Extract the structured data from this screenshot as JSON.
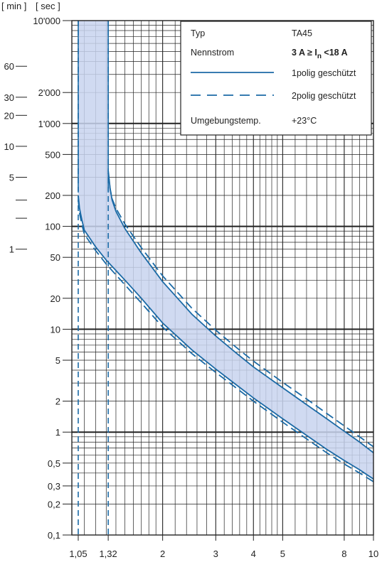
{
  "chart_data": {
    "type": "line",
    "title": "",
    "axis_labels": {
      "minutes": "[ min ]",
      "seconds": "[ sec ]"
    },
    "x_scale": "log",
    "y_scale": "log",
    "xlim": [
      1,
      10
    ],
    "ylim": [
      0.1,
      10000
    ],
    "x_ticks": [
      {
        "value": 1.05,
        "label": "1,05"
      },
      {
        "value": 1.32,
        "label": "1,32"
      },
      {
        "value": 2,
        "label": "2"
      },
      {
        "value": 3,
        "label": "3"
      },
      {
        "value": 4,
        "label": "4"
      },
      {
        "value": 5,
        "label": "5"
      },
      {
        "value": 8,
        "label": "8"
      },
      {
        "value": 10,
        "label": "10"
      }
    ],
    "y_ticks_sec": [
      {
        "value": 10000,
        "label": "10'000"
      },
      {
        "value": 2000,
        "label": "2'000"
      },
      {
        "value": 1000,
        "label": "1'000"
      },
      {
        "value": 500,
        "label": "500"
      },
      {
        "value": 200,
        "label": "200"
      },
      {
        "value": 100,
        "label": "100"
      },
      {
        "value": 50,
        "label": "50"
      },
      {
        "value": 20,
        "label": "20"
      },
      {
        "value": 10,
        "label": "10"
      },
      {
        "value": 5,
        "label": "5"
      },
      {
        "value": 2,
        "label": "2"
      },
      {
        "value": 1,
        "label": "1"
      },
      {
        "value": 0.5,
        "label": "0,5"
      },
      {
        "value": 0.3,
        "label": "0,3"
      },
      {
        "value": 0.2,
        "label": "0,2"
      },
      {
        "value": 0.1,
        "label": "0,1"
      }
    ],
    "y_ticks_min": [
      {
        "value": 3600,
        "label": "60"
      },
      {
        "value": 1800,
        "label": "30"
      },
      {
        "value": 1200,
        "label": "20"
      },
      {
        "value": 600,
        "label": "10"
      },
      {
        "value": 300,
        "label": "5"
      },
      {
        "value": 180,
        "label": ""
      },
      {
        "value": 120,
        "label": ""
      },
      {
        "value": 60,
        "label": "1"
      }
    ],
    "major_y_lines": [
      1,
      10,
      100,
      1000
    ],
    "vertical_markers": [
      1.05,
      1.32
    ],
    "band_fill": "#c8d4ee",
    "line_color": "#1b6aa6",
    "series": [
      {
        "legend_ref": "solid",
        "style": "solid",
        "points": [
          [
            1.05,
            200
          ],
          [
            1.06,
            150
          ],
          [
            1.08,
            115
          ],
          [
            1.1,
            92
          ],
          [
            1.2,
            63
          ],
          [
            1.3,
            47
          ],
          [
            1.5,
            30
          ],
          [
            1.7,
            20
          ],
          [
            2,
            11.5
          ],
          [
            2.5,
            6.3
          ],
          [
            3,
            4.1
          ],
          [
            3.5,
            2.9
          ],
          [
            4,
            2.15
          ],
          [
            5,
            1.35
          ],
          [
            6,
            0.93
          ],
          [
            7,
            0.68
          ],
          [
            8,
            0.53
          ],
          [
            9,
            0.43
          ],
          [
            10,
            0.35
          ]
        ]
      },
      {
        "legend_ref": "solid",
        "style": "solid",
        "points": [
          [
            1.32,
            350
          ],
          [
            1.34,
            230
          ],
          [
            1.36,
            180
          ],
          [
            1.4,
            140
          ],
          [
            1.5,
            95
          ],
          [
            1.7,
            55
          ],
          [
            2,
            29
          ],
          [
            2.5,
            14
          ],
          [
            3,
            8.6
          ],
          [
            3.5,
            5.9
          ],
          [
            4,
            4.3
          ],
          [
            5,
            2.7
          ],
          [
            6,
            1.85
          ],
          [
            7,
            1.35
          ],
          [
            8,
            1.02
          ],
          [
            9,
            0.8
          ],
          [
            10,
            0.63
          ]
        ]
      },
      {
        "legend_ref": "dashed",
        "style": "dashed",
        "points": [
          [
            1.05,
            180
          ],
          [
            1.06,
            135
          ],
          [
            1.08,
            104
          ],
          [
            1.1,
            84
          ],
          [
            1.2,
            58
          ],
          [
            1.3,
            43
          ],
          [
            1.5,
            27
          ],
          [
            1.7,
            18
          ],
          [
            2,
            10.5
          ],
          [
            2.5,
            5.8
          ],
          [
            3,
            3.8
          ],
          [
            3.5,
            2.7
          ],
          [
            4,
            2.0
          ],
          [
            5,
            1.25
          ],
          [
            6,
            0.86
          ],
          [
            7,
            0.63
          ],
          [
            8,
            0.49
          ],
          [
            9,
            0.4
          ],
          [
            10,
            0.33
          ]
        ]
      },
      {
        "legend_ref": "dashed",
        "style": "dashed",
        "points": [
          [
            1.32,
            330
          ],
          [
            1.34,
            230
          ],
          [
            1.36,
            185
          ],
          [
            1.4,
            150
          ],
          [
            1.5,
            105
          ],
          [
            1.7,
            62
          ],
          [
            2,
            33
          ],
          [
            2.5,
            16
          ],
          [
            3,
            9.8
          ],
          [
            3.5,
            6.7
          ],
          [
            4,
            4.9
          ],
          [
            5,
            3.05
          ],
          [
            6,
            2.1
          ],
          [
            7,
            1.52
          ],
          [
            8,
            1.15
          ],
          [
            9,
            0.9
          ],
          [
            10,
            0.72
          ]
        ]
      }
    ]
  },
  "legend": {
    "typ_label": "Typ",
    "typ_value": "TA45",
    "nennstrom_label": "Nennstrom",
    "nennstrom_a": "3 A ≥ I",
    "nennstrom_sub": "n",
    "nennstrom_b": " <18 A",
    "solid_label": "1polig geschützt",
    "dashed_label": "2polig geschützt",
    "temp_label": "Umgebungstemp.",
    "temp_value": "+23°C"
  }
}
